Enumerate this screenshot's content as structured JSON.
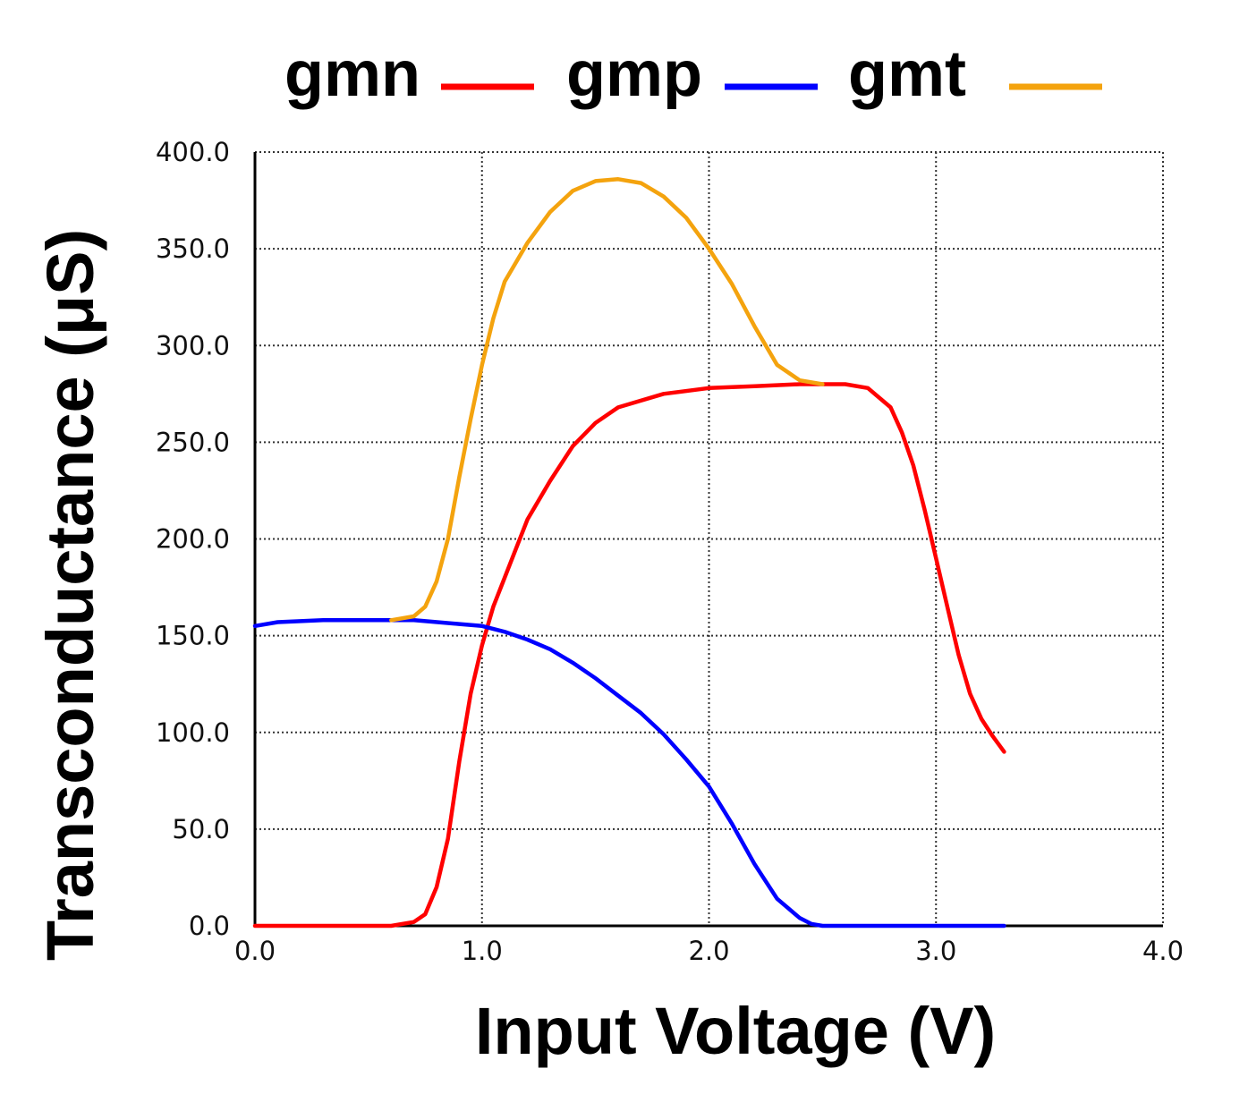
{
  "chart_data": {
    "type": "line",
    "title": "",
    "xlabel": "Input Voltage  (V)",
    "ylabel": "Transconductance (μS)",
    "xlim": [
      0,
      4
    ],
    "ylim": [
      0,
      400
    ],
    "x_ticks": [
      0,
      1,
      2,
      3,
      4
    ],
    "x_tick_labels": [
      "0.0",
      "1.0",
      "2.0",
      "3.0",
      "4.0"
    ],
    "y_ticks": [
      0,
      50,
      100,
      150,
      200,
      250,
      300,
      350,
      400
    ],
    "y_tick_labels": [
      "0.0",
      "50.0",
      "100.0",
      "150.0",
      "200.0",
      "250.0",
      "300.0",
      "350.0",
      "400.0"
    ],
    "grid": true,
    "legend_position": "top",
    "series": [
      {
        "name": "gmn",
        "color": "#ff0000",
        "points": [
          [
            0,
            0
          ],
          [
            0.3,
            0
          ],
          [
            0.6,
            0
          ],
          [
            0.7,
            2
          ],
          [
            0.75,
            6
          ],
          [
            0.8,
            20
          ],
          [
            0.85,
            45
          ],
          [
            0.9,
            85
          ],
          [
            0.95,
            120
          ],
          [
            1.0,
            145
          ],
          [
            1.05,
            165
          ],
          [
            1.1,
            180
          ],
          [
            1.15,
            195
          ],
          [
            1.2,
            210
          ],
          [
            1.3,
            230
          ],
          [
            1.4,
            248
          ],
          [
            1.5,
            260
          ],
          [
            1.6,
            268
          ],
          [
            1.8,
            275
          ],
          [
            2.0,
            278
          ],
          [
            2.2,
            279
          ],
          [
            2.4,
            280
          ],
          [
            2.5,
            280
          ],
          [
            2.6,
            280
          ],
          [
            2.7,
            278
          ],
          [
            2.8,
            268
          ],
          [
            2.85,
            255
          ],
          [
            2.9,
            238
          ],
          [
            2.95,
            215
          ],
          [
            3.0,
            190
          ],
          [
            3.05,
            165
          ],
          [
            3.1,
            140
          ],
          [
            3.15,
            120
          ],
          [
            3.2,
            107
          ],
          [
            3.25,
            98
          ],
          [
            3.3,
            90
          ]
        ]
      },
      {
        "name": "gmp",
        "color": "#0000ff",
        "points": [
          [
            0,
            155
          ],
          [
            0.1,
            157
          ],
          [
            0.3,
            158
          ],
          [
            0.5,
            158
          ],
          [
            0.7,
            158
          ],
          [
            0.9,
            156
          ],
          [
            1.0,
            155
          ],
          [
            1.1,
            152
          ],
          [
            1.2,
            148
          ],
          [
            1.3,
            143
          ],
          [
            1.4,
            136
          ],
          [
            1.5,
            128
          ],
          [
            1.6,
            119
          ],
          [
            1.7,
            110
          ],
          [
            1.8,
            99
          ],
          [
            1.9,
            86
          ],
          [
            2.0,
            72
          ],
          [
            2.1,
            53
          ],
          [
            2.2,
            32
          ],
          [
            2.3,
            14
          ],
          [
            2.4,
            4
          ],
          [
            2.45,
            1
          ],
          [
            2.5,
            0
          ],
          [
            2.8,
            0
          ],
          [
            3.0,
            0
          ],
          [
            3.3,
            0
          ]
        ]
      },
      {
        "name": "gmt",
        "color": "#f4a30e",
        "points": [
          [
            0.6,
            158
          ],
          [
            0.7,
            160
          ],
          [
            0.75,
            165
          ],
          [
            0.8,
            178
          ],
          [
            0.85,
            200
          ],
          [
            0.9,
            232
          ],
          [
            0.95,
            262
          ],
          [
            1.0,
            290
          ],
          [
            1.05,
            314
          ],
          [
            1.1,
            333
          ],
          [
            1.2,
            353
          ],
          [
            1.3,
            369
          ],
          [
            1.4,
            380
          ],
          [
            1.5,
            385
          ],
          [
            1.6,
            386
          ],
          [
            1.7,
            384
          ],
          [
            1.8,
            377
          ],
          [
            1.9,
            366
          ],
          [
            2.0,
            350
          ],
          [
            2.1,
            332
          ],
          [
            2.2,
            310
          ],
          [
            2.3,
            290
          ],
          [
            2.4,
            282
          ],
          [
            2.5,
            280
          ]
        ]
      }
    ]
  }
}
